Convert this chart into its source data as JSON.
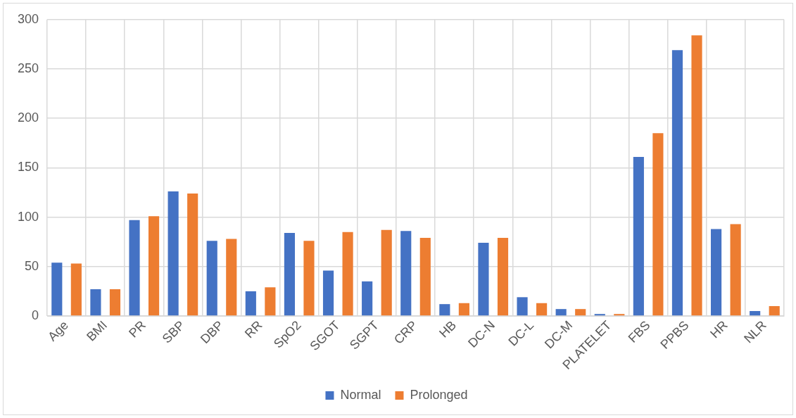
{
  "chart_data": {
    "type": "bar",
    "categories": [
      "Age",
      "BMI",
      "PR",
      "SBP",
      "DBP",
      "RR",
      "SpO2",
      "SGOT",
      "SGPT",
      "CRP",
      "HB",
      "DC-N",
      "DC-L",
      "DC-M",
      "PLATELET",
      "FBS",
      "PPBS",
      "HR",
      "NLR"
    ],
    "series": [
      {
        "name": "Normal",
        "color": "#4472c4",
        "values": [
          54,
          27,
          97,
          126,
          76,
          25,
          84,
          46,
          35,
          86,
          12,
          74,
          19,
          7,
          2,
          161,
          269,
          88,
          5
        ]
      },
      {
        "name": "Prolonged",
        "color": "#ed7d31",
        "values": [
          53,
          27,
          101,
          124,
          78,
          29,
          76,
          85,
          87,
          79,
          13,
          79,
          13,
          7,
          2,
          185,
          284,
          93,
          10
        ]
      }
    ],
    "ylim": [
      0,
      300
    ],
    "yticks": [
      0,
      50,
      100,
      150,
      200,
      250,
      300
    ],
    "grid": true,
    "legend": "bottom"
  }
}
